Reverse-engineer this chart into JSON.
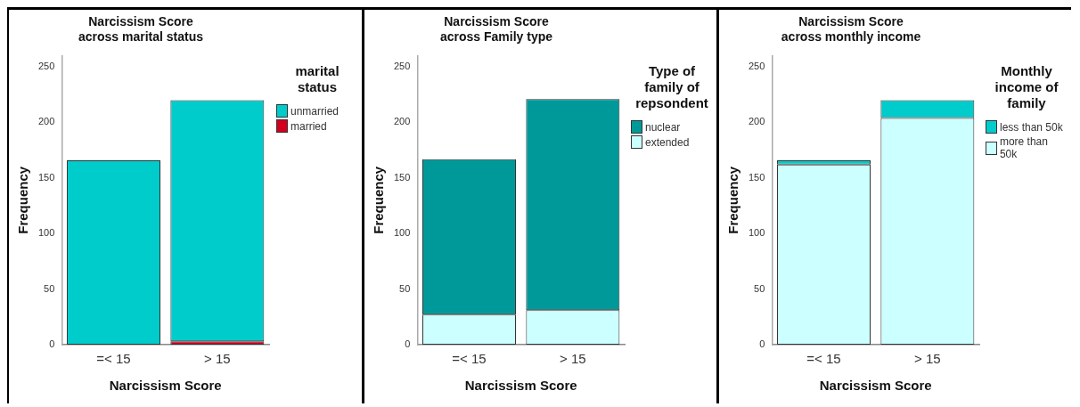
{
  "chart_data": [
    {
      "type": "bar",
      "stacked": true,
      "title": "Narcissism Score across marital status",
      "xlabel": "Narcissism Score",
      "ylabel": "Frequency",
      "legend_title": "marital status",
      "legend": "right",
      "categories": [
        "=< 15",
        "> 15"
      ],
      "ylim": [
        0,
        260
      ],
      "yticks": [
        0,
        50,
        100,
        150,
        200,
        250
      ],
      "series": [
        {
          "name": "married",
          "color": "#d2001e",
          "values": [
            0,
            3
          ]
        },
        {
          "name": "unmarried",
          "color": "#00cccc",
          "values": [
            166,
            217
          ]
        }
      ]
    },
    {
      "type": "bar",
      "stacked": true,
      "title": "Narcissism Score across Family type",
      "xlabel": "Narcissism Score",
      "ylabel": "Frequency",
      "legend_title": "Type of family of repsondent",
      "legend": "right",
      "categories": [
        "=< 15",
        "> 15"
      ],
      "ylim": [
        0,
        260
      ],
      "yticks": [
        0,
        50,
        100,
        150,
        200,
        250
      ],
      "series": [
        {
          "name": "extended",
          "color": "#ccffff",
          "values": [
            27,
            31
          ]
        },
        {
          "name": "nuclear",
          "color": "#009999",
          "values": [
            140,
            190
          ]
        }
      ]
    },
    {
      "type": "bar",
      "stacked": true,
      "title": "Narcissism Score across monthly income",
      "xlabel": "Narcissism Score",
      "ylabel": "Frequency",
      "legend_title": "Monthly income of family",
      "legend": "right",
      "categories": [
        "=< 15",
        "> 15"
      ],
      "ylim": [
        0,
        260
      ],
      "yticks": [
        0,
        50,
        100,
        150,
        200,
        250
      ],
      "series": [
        {
          "name": "more than 50k",
          "color": "#ccffff",
          "values": [
            162,
            204
          ]
        },
        {
          "name": "less than 50k",
          "color": "#00cccc",
          "values": [
            4,
            16
          ]
        }
      ]
    }
  ]
}
